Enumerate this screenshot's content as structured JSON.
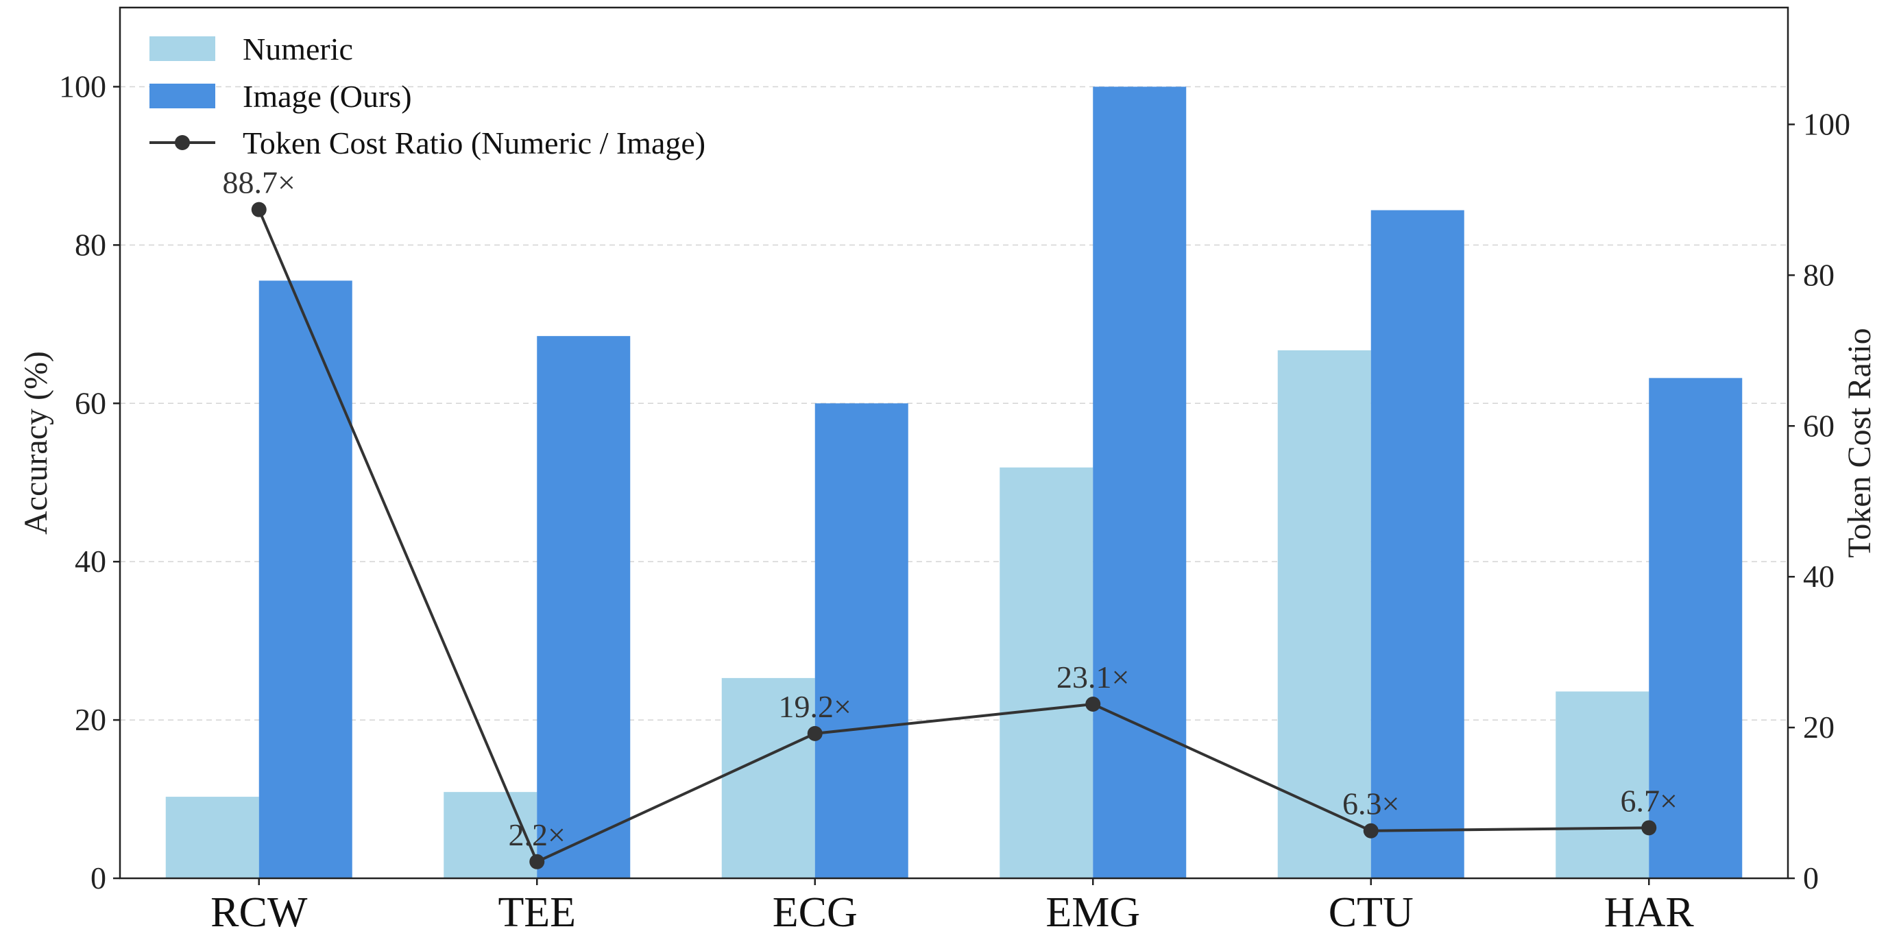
{
  "chart_data": {
    "type": "bar",
    "title": "",
    "categories": [
      "RCW",
      "TEE",
      "ECG",
      "EMG",
      "CTU",
      "HAR"
    ],
    "series": [
      {
        "name": "Numeric",
        "type": "bar",
        "axis": "left",
        "color": "#a8d5e8",
        "values": [
          10.3,
          10.9,
          25.3,
          51.9,
          66.7,
          23.6
        ]
      },
      {
        "name": "Image (Ours)",
        "type": "bar",
        "axis": "left",
        "color": "#4a90e0",
        "values": [
          75.5,
          68.5,
          60.0,
          100.0,
          84.4,
          63.2
        ]
      },
      {
        "name": "Token Cost Ratio (Numeric / Image)",
        "type": "line",
        "axis": "right",
        "color": "#333333",
        "values": [
          88.7,
          2.2,
          19.2,
          23.1,
          6.3,
          6.7
        ],
        "labels": [
          "88.7×",
          "2.2×",
          "19.2×",
          "23.1×",
          "6.3×",
          "6.7×"
        ]
      }
    ],
    "ylabel": "Accuracy (%)",
    "ylim": [
      0,
      110
    ],
    "yticks": [
      "0",
      "20",
      "40",
      "60",
      "80",
      "100"
    ],
    "y2label": "Token Cost Ratio",
    "y2lim": [
      0,
      115.5
    ],
    "y2ticks": [
      "0",
      "20",
      "40",
      "60",
      "80",
      "100"
    ],
    "grid": true,
    "legend_position": "top-left"
  }
}
